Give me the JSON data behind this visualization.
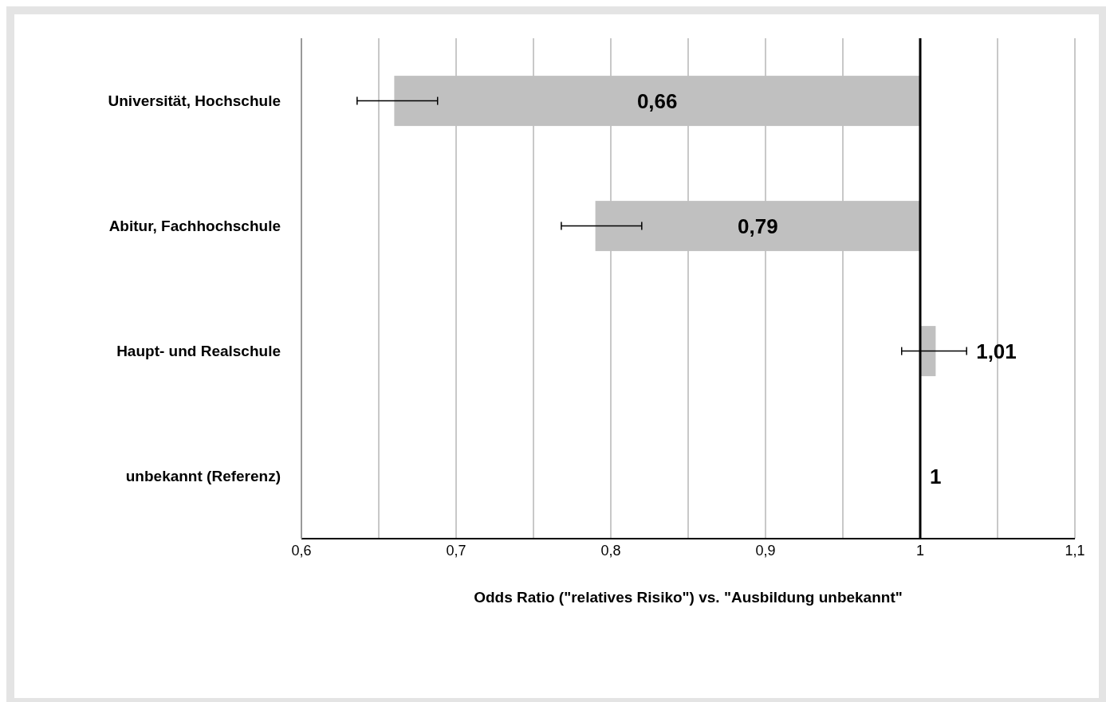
{
  "chart_data": {
    "type": "bar",
    "orientation": "horizontal",
    "xlabel": "Odds Ratio (\"relatives Risiko\") vs. \"Ausbildung unbekannt\"",
    "categories": [
      "Universität, Hochschule",
      "Abitur, Fachhochschule",
      "Haupt- und Realschule",
      "unbekannt (Referenz)"
    ],
    "base": [
      1,
      1,
      1,
      null
    ],
    "values": [
      -0.34,
      -0.21,
      0.01,
      null
    ],
    "value_labels": [
      "0,66",
      "0,79",
      "1,01",
      "1"
    ],
    "errors": [
      [
        0.636,
        0.688
      ],
      [
        0.768,
        0.82
      ],
      [
        0.988,
        1.03
      ],
      null
    ],
    "color": "#c0c0c0",
    "xlim": [
      0.6,
      1.1
    ],
    "xticks": [
      {
        "value": 0.6,
        "label": "0,6"
      },
      {
        "value": 0.65,
        "label": null
      },
      {
        "value": 0.7,
        "label": "0,7"
      },
      {
        "value": 0.75,
        "label": null
      },
      {
        "value": 0.8,
        "label": "0,8"
      },
      {
        "value": 0.85,
        "label": null
      },
      {
        "value": 0.9,
        "label": "0,9"
      },
      {
        "value": 0.95,
        "label": null
      },
      {
        "value": 1,
        "label": "1"
      },
      {
        "value": 1.05,
        "label": null
      },
      {
        "value": 1.1,
        "label": "1,1"
      }
    ],
    "grid": "x",
    "ref_lines": [
      {
        "axis": "x",
        "value": 1,
        "color": "#000000"
      }
    ]
  }
}
